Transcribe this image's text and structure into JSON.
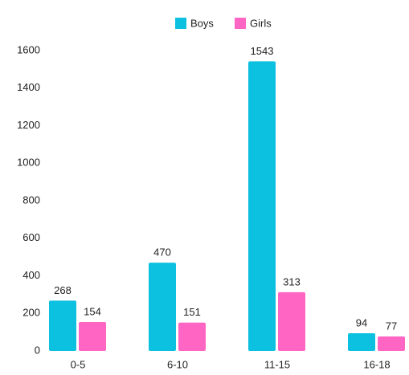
{
  "chart_data": {
    "type": "bar",
    "categories": [
      "0-5",
      "6-10",
      "11-15",
      "16-18"
    ],
    "series": [
      {
        "name": "Boys",
        "color": "#0cc0df",
        "values": [
          268,
          470,
          1543,
          94
        ]
      },
      {
        "name": "Girls",
        "color": "#ff66c4",
        "values": [
          154,
          151,
          313,
          77
        ]
      }
    ],
    "ylim": [
      0,
      1600
    ],
    "yticks": [
      0,
      200,
      400,
      600,
      800,
      1000,
      1200,
      1400,
      1600
    ],
    "legend": "top"
  }
}
